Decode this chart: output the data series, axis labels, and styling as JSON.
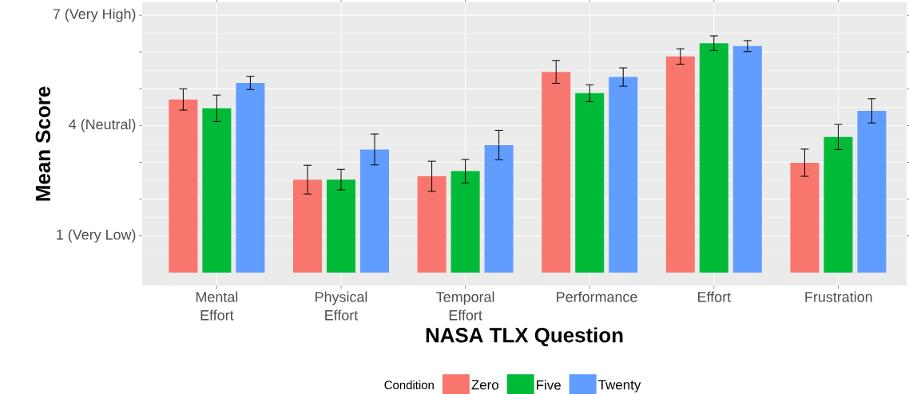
{
  "chart_data": {
    "type": "bar",
    "xlabel": "NASA TLX Question",
    "ylabel": "Mean Score",
    "legend_title": "Condition",
    "legend": "bottom",
    "grid": true,
    "categories": [
      "Mental Effort",
      "Physical Effort",
      "Temporal Effort",
      "Performance",
      "Effort",
      "Frustration"
    ],
    "ylim": [
      -0.35,
      7.35
    ],
    "yticks": [
      {
        "value": 1,
        "label": "1 (Very Low)"
      },
      {
        "value": 2,
        "label": null
      },
      {
        "value": 3,
        "label": null
      },
      {
        "value": 4,
        "label": "4 (Neutral)"
      },
      {
        "value": 5,
        "label": null
      },
      {
        "value": 6,
        "label": null
      },
      {
        "value": 7,
        "label": "7 (Very High)"
      }
    ],
    "series": [
      {
        "name": "Zero",
        "color": "#f8766d",
        "values": [
          4.71,
          2.53,
          2.62,
          5.46,
          5.88,
          2.99
        ],
        "errors": [
          0.29,
          0.39,
          0.41,
          0.31,
          0.21,
          0.37
        ]
      },
      {
        "name": "Five",
        "color": "#00ba38",
        "values": [
          4.47,
          2.53,
          2.76,
          4.88,
          6.24,
          3.69
        ],
        "errors": [
          0.36,
          0.28,
          0.32,
          0.23,
          0.2,
          0.34
        ]
      },
      {
        "name": "Twenty",
        "color": "#619cff",
        "values": [
          5.16,
          3.35,
          3.47,
          5.32,
          6.16,
          4.4
        ],
        "errors": [
          0.18,
          0.42,
          0.4,
          0.25,
          0.15,
          0.33
        ]
      }
    ]
  }
}
